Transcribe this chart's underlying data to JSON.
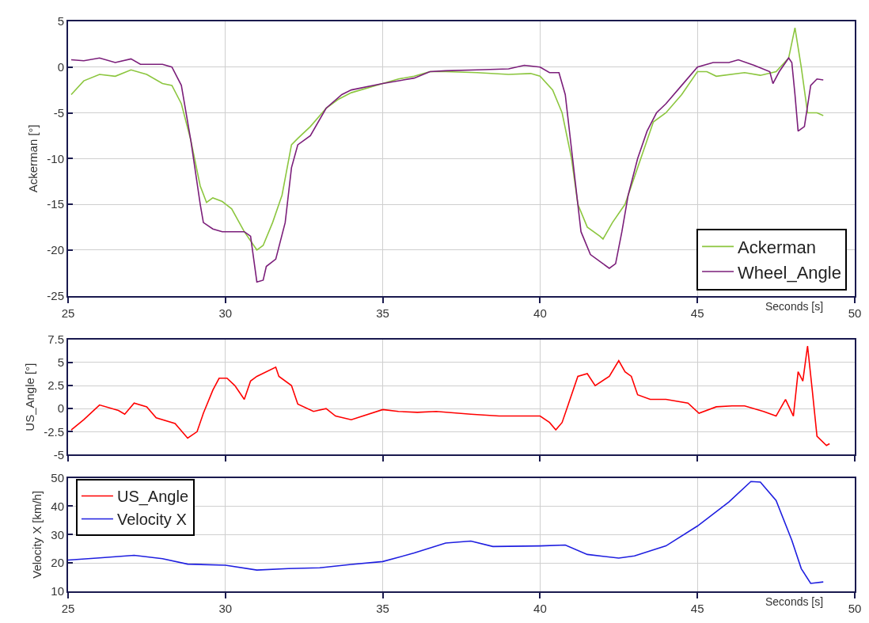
{
  "chart_data": [
    {
      "type": "line",
      "xlabel": "Seconds [s]",
      "ylabel": "Ackerman [°]",
      "xlim": [
        25,
        50
      ],
      "xticks": [
        25,
        30,
        35,
        40,
        45,
        50
      ],
      "ylim": [
        -25,
        5
      ],
      "yticks": [
        -25,
        -20,
        -15,
        -10,
        -5,
        0,
        5
      ],
      "grid": true,
      "legend": "bottom right",
      "series": [
        {
          "name": "Ackerman",
          "color": "#8cc63f",
          "x": [
            25.1,
            25.5,
            26,
            26.5,
            27,
            27.5,
            28,
            28.3,
            28.6,
            28.9,
            29.2,
            29.4,
            29.6,
            29.9,
            30.2,
            30.6,
            31,
            31.2,
            31.5,
            31.8,
            32.1,
            32.3,
            32.7,
            33.2,
            33.6,
            34,
            35,
            35.5,
            36,
            36.5,
            37,
            38,
            39,
            39.7,
            40,
            40.4,
            40.7,
            41,
            41.2,
            41.5,
            41.9,
            42,
            42.3,
            42.7,
            43,
            43.3,
            43.6,
            44,
            44.5,
            45,
            45.3,
            45.6,
            46.5,
            47,
            47.5,
            47.9,
            48.1,
            48.3,
            48.5,
            48.8,
            49
          ],
          "values": [
            -3,
            -1.5,
            -0.8,
            -1,
            -0.3,
            -0.8,
            -1.8,
            -2,
            -4,
            -8,
            -13,
            -14.8,
            -14.3,
            -14.7,
            -15.5,
            -18,
            -20,
            -19.5,
            -17,
            -14,
            -8.5,
            -7.8,
            -6.5,
            -4.5,
            -3.5,
            -2.8,
            -1.8,
            -1.3,
            -1,
            -0.5,
            -0.5,
            -0.6,
            -0.8,
            -0.7,
            -1,
            -2.5,
            -5,
            -10,
            -15,
            -17.5,
            -18.5,
            -18.8,
            -17,
            -15,
            -12,
            -9,
            -6,
            -5,
            -3,
            -0.5,
            -0.5,
            -1,
            -0.6,
            -0.9,
            -0.5,
            1,
            4.3,
            0,
            -5,
            -5,
            -5.3
          ]
        },
        {
          "name": "Wheel_Angle",
          "color": "#7b1e7a",
          "x": [
            25.1,
            25.5,
            26,
            26.5,
            27,
            27.3,
            28,
            28.3,
            28.6,
            28.9,
            29.2,
            29.3,
            29.6,
            29.9,
            30.3,
            30.6,
            30.8,
            30.9,
            31,
            31.2,
            31.3,
            31.6,
            31.9,
            32.1,
            32.3,
            32.7,
            33.2,
            33.7,
            34,
            35,
            36,
            36.5,
            37,
            38,
            39,
            39.5,
            40,
            40.3,
            40.6,
            40.8,
            41.1,
            41.3,
            41.6,
            42,
            42.2,
            42.4,
            42.6,
            42.8,
            43.1,
            43.4,
            43.7,
            44,
            44.5,
            45,
            45.5,
            46,
            46.3,
            46.8,
            47.3,
            47.4,
            47.6,
            47.9,
            48,
            48.1,
            48.2,
            48.4,
            48.6,
            48.8,
            49
          ],
          "values": [
            0.8,
            0.7,
            1,
            0.5,
            0.9,
            0.3,
            0.3,
            0,
            -2,
            -8,
            -15,
            -17,
            -17.7,
            -18,
            -18,
            -18,
            -18.5,
            -21,
            -23.5,
            -23.3,
            -21.8,
            -21,
            -17,
            -11,
            -8.5,
            -7.5,
            -4.5,
            -3,
            -2.5,
            -1.8,
            -1.2,
            -0.5,
            -0.4,
            -0.3,
            -0.2,
            0.2,
            0,
            -0.6,
            -0.6,
            -3,
            -12,
            -18,
            -20.5,
            -21.5,
            -22,
            -21.5,
            -18,
            -14,
            -10,
            -7,
            -5,
            -4,
            -2,
            0,
            0.5,
            0.5,
            0.8,
            0.2,
            -0.5,
            -1.8,
            -0.5,
            1,
            0.5,
            -3,
            -7,
            -6.5,
            -2,
            -1.3,
            -1.4
          ]
        }
      ]
    },
    {
      "type": "line",
      "ylabel": "US_Angle [°]",
      "xlim": [
        25,
        50
      ],
      "xticks": [
        25,
        30,
        35,
        40,
        45,
        50
      ],
      "ylim": [
        -5,
        7.5
      ],
      "yticks": [
        -5,
        -2.5,
        0,
        2.5,
        5,
        7.5
      ],
      "grid": true,
      "tick_labels": "y",
      "series": [
        {
          "name": "US_Angle",
          "color": "#ff0000",
          "x": [
            25.1,
            25.5,
            26,
            26.6,
            26.8,
            27.1,
            27.5,
            27.8,
            28.4,
            28.8,
            29.1,
            29.3,
            29.6,
            29.8,
            30.05,
            30.3,
            30.6,
            30.8,
            31,
            31.6,
            31.7,
            32.1,
            32.3,
            32.8,
            33.2,
            33.5,
            34,
            35,
            35.5,
            36.1,
            36.7,
            37.8,
            38.7,
            39.4,
            40,
            40.3,
            40.5,
            40.7,
            40.9,
            41.2,
            41.5,
            41.75,
            42.2,
            42.5,
            42.7,
            42.9,
            43.1,
            43.5,
            44,
            44.7,
            45.05,
            45.6,
            46.1,
            46.5,
            47.1,
            47.5,
            47.8,
            48.05,
            48.2,
            48.35,
            48.5,
            48.65,
            48.8,
            49.1,
            49.2
          ],
          "values": [
            -2.3,
            -1.2,
            0.4,
            -0.2,
            -0.6,
            0.6,
            0.2,
            -1,
            -1.6,
            -3.2,
            -2.5,
            -0.5,
            2,
            3.3,
            3.3,
            2.5,
            1,
            3,
            3.5,
            4.5,
            3.5,
            2.5,
            0.5,
            -0.3,
            0,
            -0.8,
            -1.2,
            -0.1,
            -0.3,
            -0.4,
            -0.3,
            -0.6,
            -0.8,
            -0.8,
            -0.8,
            -1.5,
            -2.3,
            -1.5,
            0.5,
            3.5,
            3.8,
            2.5,
            3.5,
            5.2,
            4,
            3.5,
            1.5,
            1,
            1,
            0.6,
            -0.5,
            0.2,
            0.3,
            0.3,
            -0.3,
            -0.8,
            1,
            -0.8,
            4,
            3,
            6.8,
            2,
            -3,
            -4,
            -3.8
          ]
        }
      ]
    },
    {
      "type": "line",
      "xlabel": "Seconds [s]",
      "ylabel": "Velocity X [km/h]",
      "xlim": [
        25,
        50
      ],
      "xticks": [
        25,
        30,
        35,
        40,
        45,
        50
      ],
      "ylim": [
        10,
        50
      ],
      "yticks": [
        10,
        20,
        30,
        40,
        50
      ],
      "grid": true,
      "legend": "top left",
      "series": [
        {
          "name": "Velocity X",
          "color": "#1f1fe0",
          "x": [
            25,
            26,
            27.1,
            28,
            28.8,
            30,
            31,
            32,
            33,
            34,
            35,
            36,
            37,
            37.8,
            38.5,
            40,
            40.8,
            41.5,
            42.5,
            43,
            44,
            45,
            46,
            46.7,
            47,
            47.5,
            48,
            48.3,
            48.6,
            49
          ],
          "values": [
            21,
            21.8,
            22.7,
            21.5,
            19.6,
            19.2,
            17.5,
            18,
            18.3,
            19.5,
            20.5,
            23.5,
            27,
            27.7,
            25.8,
            26,
            26.3,
            23,
            21.7,
            22.5,
            26,
            33,
            41.5,
            48.7,
            48.5,
            42,
            28,
            18,
            12.8,
            13.3
          ]
        }
      ]
    }
  ]
}
